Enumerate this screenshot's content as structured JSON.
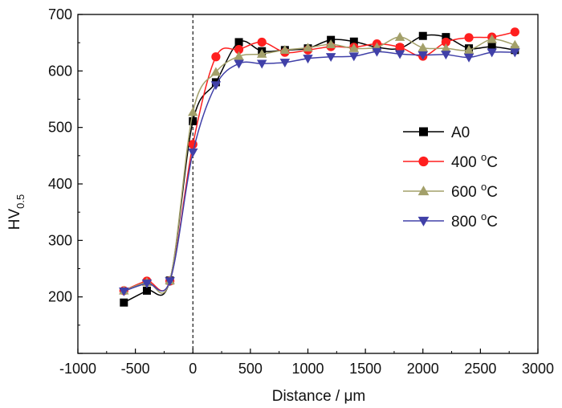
{
  "chart_data": {
    "type": "line",
    "title": "",
    "xlabel": "Distance / μm",
    "ylabel": "HV",
    "ylabel_subscript": "0.5",
    "xlim": [
      -1000,
      3000
    ],
    "ylim": [
      100,
      700
    ],
    "xticks": [
      -1000,
      -500,
      0,
      500,
      1000,
      1500,
      2000,
      2500,
      3000
    ],
    "xtick_labels": [
      "-1000",
      "-500",
      "0",
      "500",
      "1000",
      "1500",
      "2000",
      "2500",
      "3000"
    ],
    "yticks": [
      200,
      300,
      400,
      500,
      600,
      700
    ],
    "ytick_labels": [
      "200",
      "300",
      "400",
      "500",
      "600",
      "700"
    ],
    "reference_line_x": 0,
    "legend_position": "center-right",
    "series": [
      {
        "name": "A0",
        "label_main": "A0",
        "label_sup": "",
        "label_tail": "",
        "color": "#000000",
        "marker": "square",
        "x": [
          -600,
          -400,
          -200,
          0,
          200,
          400,
          600,
          800,
          1000,
          1200,
          1400,
          1600,
          1800,
          2000,
          2200,
          2400,
          2600,
          2800
        ],
        "y": [
          190,
          211,
          229,
          511,
          580,
          651,
          635,
          637,
          640,
          655,
          652,
          642,
          640,
          662,
          660,
          640,
          643,
          637
        ]
      },
      {
        "name": "400 °C",
        "label_main": "400 ",
        "label_sup": "o",
        "label_tail": "C",
        "color": "#ff1f1f",
        "marker": "circle",
        "x": [
          -600,
          -400,
          -200,
          0,
          200,
          400,
          600,
          800,
          1000,
          1200,
          1400,
          1600,
          1800,
          2000,
          2200,
          2400,
          2600,
          2800
        ],
        "y": [
          211,
          228,
          228,
          470,
          625,
          638,
          651,
          633,
          637,
          643,
          642,
          648,
          642,
          626,
          651,
          659,
          660,
          669
        ]
      },
      {
        "name": "600 °C",
        "label_main": "600 ",
        "label_sup": "o",
        "label_tail": "C",
        "color": "#a3a06a",
        "marker": "triangle-up",
        "x": [
          -600,
          -400,
          -200,
          0,
          200,
          400,
          600,
          800,
          1000,
          1200,
          1400,
          1600,
          1800,
          2000,
          2200,
          2400,
          2600,
          2800
        ],
        "y": [
          211,
          226,
          229,
          527,
          598,
          626,
          630,
          637,
          641,
          647,
          640,
          642,
          660,
          641,
          640,
          637,
          656,
          646
        ]
      },
      {
        "name": "800 °C",
        "label_main": "800 ",
        "label_sup": "o",
        "label_tail": "C",
        "color": "#4040a8",
        "marker": "triangle-down",
        "x": [
          -600,
          -400,
          -200,
          0,
          200,
          400,
          600,
          800,
          1000,
          1200,
          1400,
          1600,
          1800,
          2000,
          2200,
          2400,
          2600,
          2800
        ],
        "y": [
          210,
          224,
          228,
          456,
          575,
          613,
          613,
          615,
          622,
          625,
          626,
          634,
          630,
          628,
          629,
          624,
          633,
          633
        ]
      }
    ]
  }
}
